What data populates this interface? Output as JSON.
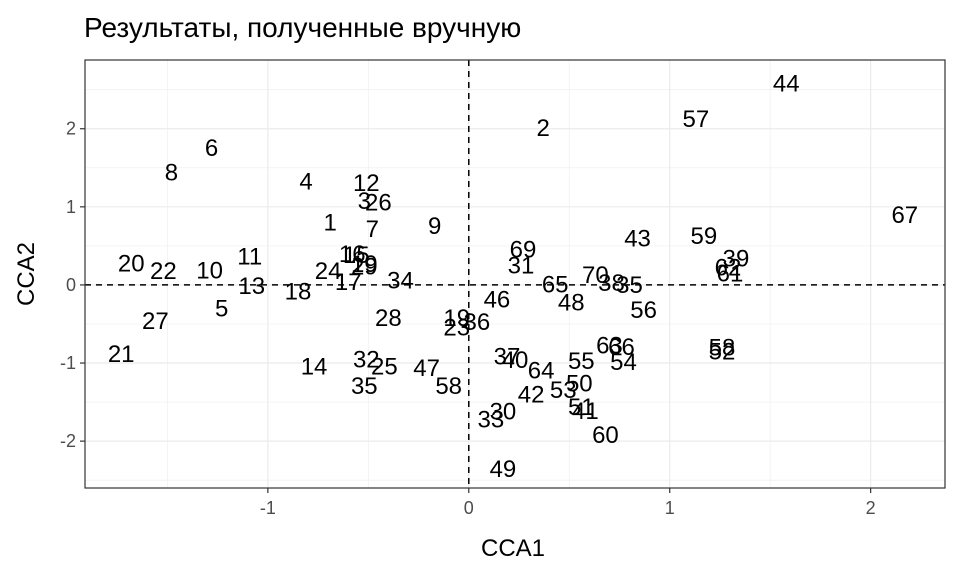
{
  "chart_data": {
    "type": "scatter",
    "title": "Результаты, полученные вручную",
    "xlabel": "CCA1",
    "ylabel": "CCA2",
    "xlim": [
      -1.91,
      2.37
    ],
    "ylim": [
      -2.6,
      2.88
    ],
    "x_ticks": [
      -1,
      0,
      1,
      2
    ],
    "y_ticks": [
      -2,
      -1,
      0,
      1,
      2
    ],
    "x_tick_labels": [
      "-1",
      "0",
      "1",
      "2"
    ],
    "y_tick_labels": [
      "-2",
      "-1",
      "0",
      "1",
      "2"
    ],
    "grid": true,
    "reference_lines": {
      "x": 0,
      "y": 0,
      "style": "dashed"
    },
    "marker": "text labels",
    "points": [
      {
        "label": "44",
        "x": 1.58,
        "y": 2.57
      },
      {
        "label": "57",
        "x": 1.13,
        "y": 2.12
      },
      {
        "label": "2",
        "x": 0.37,
        "y": 2.0
      },
      {
        "label": "67",
        "x": 2.17,
        "y": 0.89
      },
      {
        "label": "6",
        "x": -1.28,
        "y": 1.75
      },
      {
        "label": "8",
        "x": -1.48,
        "y": 1.43
      },
      {
        "label": "4",
        "x": -0.81,
        "y": 1.32
      },
      {
        "label": "12",
        "x": -0.51,
        "y": 1.3
      },
      {
        "label": "3",
        "x": -0.52,
        "y": 1.07
      },
      {
        "label": "26",
        "x": -0.45,
        "y": 1.05
      },
      {
        "label": "1",
        "x": -0.69,
        "y": 0.79
      },
      {
        "label": "7",
        "x": -0.48,
        "y": 0.71
      },
      {
        "label": "9",
        "x": -0.17,
        "y": 0.75
      },
      {
        "label": "43",
        "x": 0.84,
        "y": 0.59
      },
      {
        "label": "59",
        "x": 1.17,
        "y": 0.62
      },
      {
        "label": "69",
        "x": 0.27,
        "y": 0.45
      },
      {
        "label": "39",
        "x": 1.33,
        "y": 0.33
      },
      {
        "label": "62",
        "x": 1.29,
        "y": 0.22
      },
      {
        "label": "61",
        "x": 1.3,
        "y": 0.14
      },
      {
        "label": "20",
        "x": -1.68,
        "y": 0.27
      },
      {
        "label": "22",
        "x": -1.52,
        "y": 0.17
      },
      {
        "label": "10",
        "x": -1.29,
        "y": 0.18
      },
      {
        "label": "11",
        "x": -1.09,
        "y": 0.36
      },
      {
        "label": "16",
        "x": -0.58,
        "y": 0.39
      },
      {
        "label": "15",
        "x": -0.56,
        "y": 0.38
      },
      {
        "label": "19",
        "x": -0.52,
        "y": 0.26
      },
      {
        "label": "29",
        "x": -0.52,
        "y": 0.23
      },
      {
        "label": "24",
        "x": -0.7,
        "y": 0.17
      },
      {
        "label": "31",
        "x": 0.26,
        "y": 0.24
      },
      {
        "label": "70",
        "x": 0.63,
        "y": 0.12
      },
      {
        "label": "65",
        "x": 0.43,
        "y": 0.0
      },
      {
        "label": "38",
        "x": 0.71,
        "y": 0.02
      },
      {
        "label": "35",
        "x": 0.8,
        "y": -0.01
      },
      {
        "label": "34",
        "x": -0.34,
        "y": 0.05
      },
      {
        "label": "17",
        "x": -0.6,
        "y": 0.03
      },
      {
        "label": "13",
        "x": -1.08,
        "y": -0.02
      },
      {
        "label": "18",
        "x": -0.85,
        "y": -0.09
      },
      {
        "label": "5",
        "x": -1.23,
        "y": -0.31
      },
      {
        "label": "27",
        "x": -1.56,
        "y": -0.47
      },
      {
        "label": "21",
        "x": -1.73,
        "y": -0.89
      },
      {
        "label": "46",
        "x": 0.14,
        "y": -0.19
      },
      {
        "label": "48",
        "x": 0.51,
        "y": -0.23
      },
      {
        "label": "56",
        "x": 0.87,
        "y": -0.33
      },
      {
        "label": "28",
        "x": -0.4,
        "y": -0.43
      },
      {
        "label": "19",
        "x": -0.06,
        "y": -0.43
      },
      {
        "label": "23",
        "x": -0.06,
        "y": -0.55
      },
      {
        "label": "36",
        "x": 0.04,
        "y": -0.48
      },
      {
        "label": "63",
        "x": 0.7,
        "y": -0.78
      },
      {
        "label": "66",
        "x": 0.76,
        "y": -0.8
      },
      {
        "label": "58",
        "x": 1.26,
        "y": -0.81
      },
      {
        "label": "52",
        "x": 1.26,
        "y": -0.86
      },
      {
        "label": "37",
        "x": 0.19,
        "y": -0.92
      },
      {
        "label": "40",
        "x": 0.23,
        "y": -0.97
      },
      {
        "label": "55",
        "x": 0.56,
        "y": -0.98
      },
      {
        "label": "54",
        "x": 0.77,
        "y": -0.99
      },
      {
        "label": "32",
        "x": -0.51,
        "y": -0.96
      },
      {
        "label": "25",
        "x": -0.42,
        "y": -1.05
      },
      {
        "label": "14",
        "x": -0.77,
        "y": -1.05
      },
      {
        "label": "47",
        "x": -0.21,
        "y": -1.07
      },
      {
        "label": "64",
        "x": 0.36,
        "y": -1.1
      },
      {
        "label": "35",
        "x": -0.52,
        "y": -1.3
      },
      {
        "label": "58",
        "x": -0.1,
        "y": -1.3
      },
      {
        "label": "50",
        "x": 0.55,
        "y": -1.27
      },
      {
        "label": "42",
        "x": 0.31,
        "y": -1.41
      },
      {
        "label": "53",
        "x": 0.47,
        "y": -1.35
      },
      {
        "label": "51",
        "x": 0.56,
        "y": -1.57
      },
      {
        "label": "41",
        "x": 0.58,
        "y": -1.62
      },
      {
        "label": "30",
        "x": 0.17,
        "y": -1.63
      },
      {
        "label": "33",
        "x": 0.11,
        "y": -1.73
      },
      {
        "label": "60",
        "x": 0.68,
        "y": -1.93
      },
      {
        "label": "49",
        "x": 0.17,
        "y": -2.36
      }
    ]
  }
}
